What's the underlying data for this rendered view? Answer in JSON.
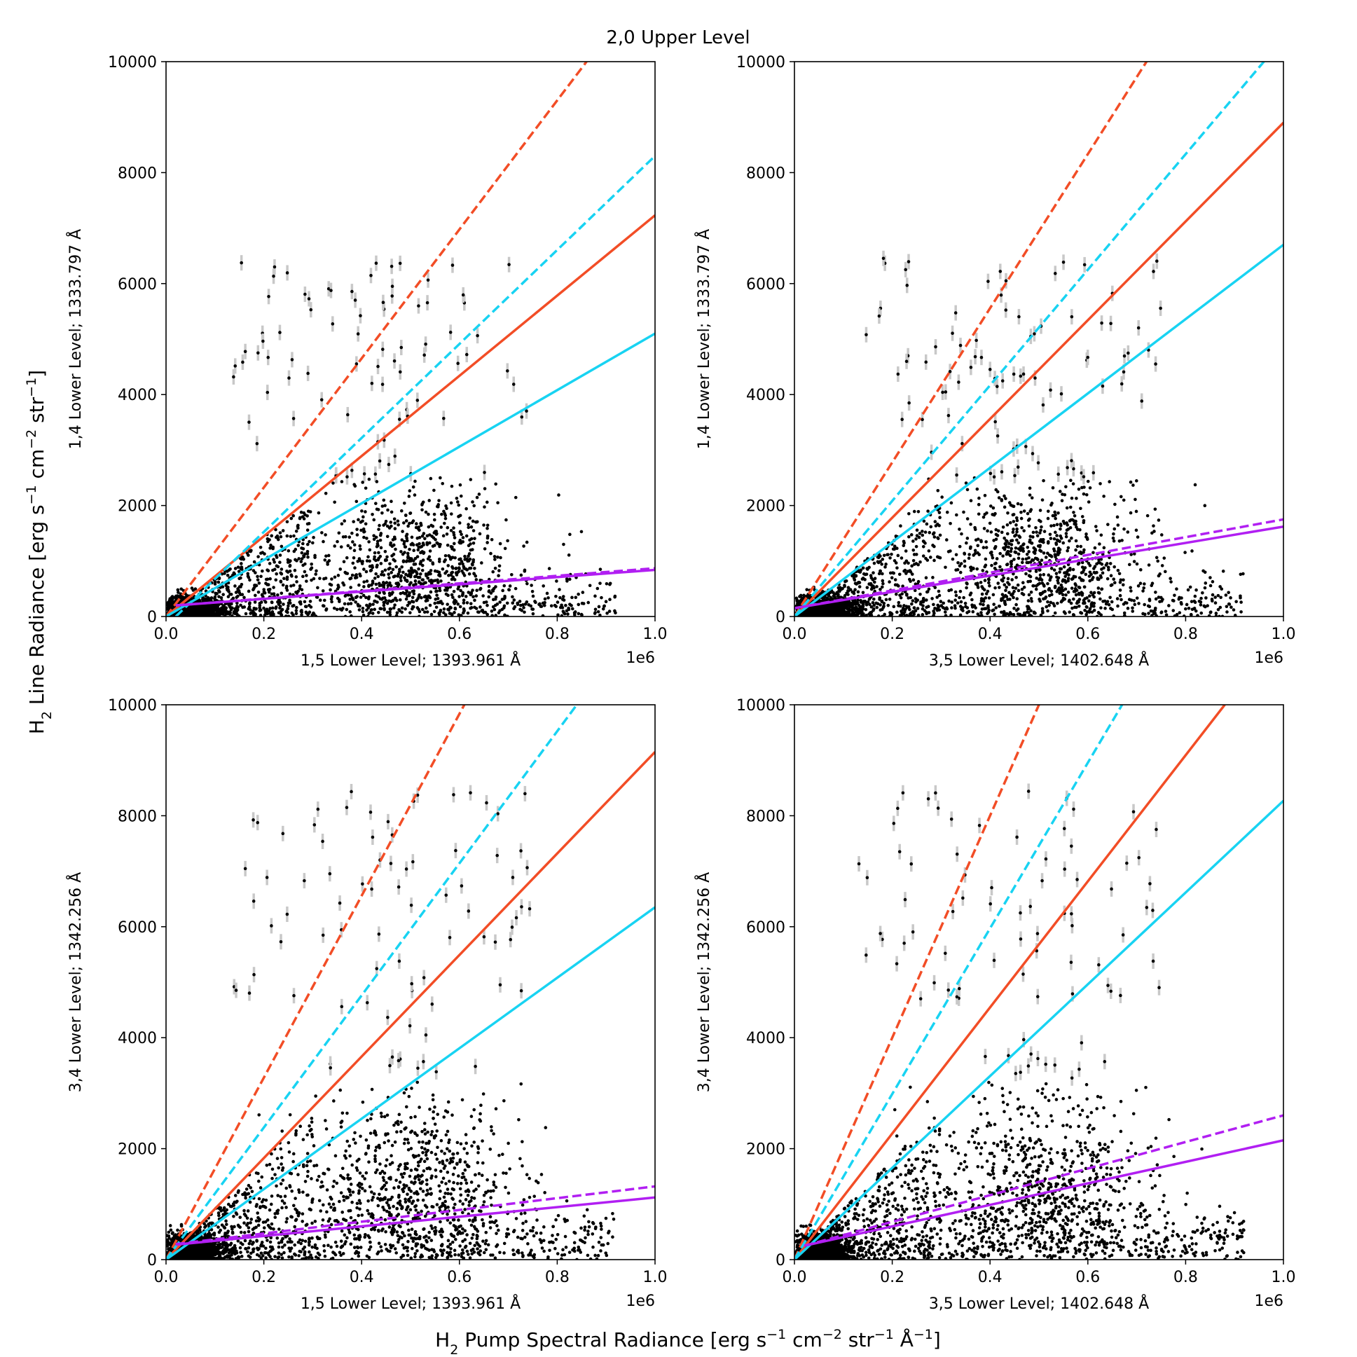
{
  "figure": {
    "suptitle": "2,0 Upper Level",
    "supylabel": {
      "prefix": "H",
      "sub": "2",
      "text": " Line Radiance [erg s",
      "sup1": "−1",
      "mid1": " cm",
      "sup2": "−2",
      "mid2": " str",
      "sup3": "−1",
      "end": "]"
    },
    "supxlabel": {
      "prefix": "H",
      "sub": "2",
      "text": " Pump Spectral Radiance [erg s",
      "sup1": "−1",
      "mid1": " cm",
      "sup2": "−2",
      "mid2": " str",
      "sup3": "−1",
      "mid3": " Å",
      "sup4": "−1",
      "end": "]"
    }
  },
  "chart_data": [
    {
      "type": "scatter",
      "panel": "top-left",
      "xlabel": "1,5 Lower Level; 1393.961 Å",
      "ylabel": "1,4 Lower Level; 1333.797 Å",
      "x_multiplier_label": "1e6",
      "xlim": [
        0,
        1.0
      ],
      "ylim": [
        0,
        10000
      ],
      "xticks": [
        "0.0",
        "0.2",
        "0.4",
        "0.6",
        "0.8",
        "1.0"
      ],
      "yticks": [
        "0",
        "2000",
        "4000",
        "6000",
        "8000",
        "10000"
      ],
      "scatter_summary": "~3000 points with grey error bars; dense cluster near origin (0–0.25, 0–1500), broad cloud over x 0.3–0.9, y 0–4500, high points near 5000–6300 at x 0.13–0.45",
      "lines": [
        {
          "name": "orange-dashed",
          "color": "#f24d26",
          "style": "dashed",
          "x": [
            0.0,
            0.86
          ],
          "y": [
            0,
            10000
          ]
        },
        {
          "name": "orange-solid",
          "color": "#f24d26",
          "style": "solid",
          "x": [
            0.0,
            1.0
          ],
          "y": [
            0,
            7230
          ]
        },
        {
          "name": "cyan-dashed",
          "color": "#18d3f2",
          "style": "dashed",
          "x": [
            0.02,
            1.0
          ],
          "y": [
            0,
            8300
          ]
        },
        {
          "name": "cyan-solid",
          "color": "#18d3f2",
          "style": "solid",
          "x": [
            0.0,
            1.0
          ],
          "y": [
            0,
            5100
          ]
        },
        {
          "name": "purple-dashed",
          "color": "#b11ff2",
          "style": "dashed",
          "x": [
            0.02,
            1.0
          ],
          "y": [
            200,
            870
          ]
        },
        {
          "name": "purple-solid",
          "color": "#b11ff2",
          "style": "solid",
          "x": [
            0.02,
            1.0
          ],
          "y": [
            200,
            840
          ]
        }
      ]
    },
    {
      "type": "scatter",
      "panel": "top-right",
      "xlabel": "3,5 Lower Level; 1402.648 Å",
      "ylabel": "1,4 Lower Level; 1333.797 Å",
      "x_multiplier_label": "1e6",
      "xlim": [
        0,
        1.0
      ],
      "ylim": [
        0,
        10000
      ],
      "xticks": [
        "0.0",
        "0.2",
        "0.4",
        "0.6",
        "0.8",
        "1.0"
      ],
      "yticks": [
        "0",
        "2000",
        "4000",
        "6000",
        "8000",
        "10000"
      ],
      "scatter_summary": "~3000 points with grey error bars; dense cluster near origin, broad cloud over x 0.3–0.8, y 0–5500",
      "lines": [
        {
          "name": "orange-dashed",
          "color": "#f24d26",
          "style": "dashed",
          "x": [
            0.0,
            0.72
          ],
          "y": [
            0,
            10000
          ]
        },
        {
          "name": "orange-solid",
          "color": "#f24d26",
          "style": "solid",
          "x": [
            0.0,
            1.0
          ],
          "y": [
            0,
            8900
          ]
        },
        {
          "name": "cyan-dashed",
          "color": "#18d3f2",
          "style": "dashed",
          "x": [
            0.0,
            0.96
          ],
          "y": [
            0,
            10000
          ]
        },
        {
          "name": "cyan-solid",
          "color": "#18d3f2",
          "style": "solid",
          "x": [
            0.0,
            1.0
          ],
          "y": [
            0,
            6700
          ]
        },
        {
          "name": "purple-dashed",
          "color": "#b11ff2",
          "style": "dashed",
          "x": [
            0.0,
            1.0
          ],
          "y": [
            150,
            1750
          ]
        },
        {
          "name": "purple-solid",
          "color": "#b11ff2",
          "style": "solid",
          "x": [
            0.0,
            1.0
          ],
          "y": [
            150,
            1620
          ]
        }
      ]
    },
    {
      "type": "scatter",
      "panel": "bottom-left",
      "xlabel": "1,5 Lower Level; 1393.961 Å",
      "ylabel": "3,4 Lower Level; 1342.256 Å",
      "x_multiplier_label": "1e6",
      "xlim": [
        0,
        1.0
      ],
      "ylim": [
        0,
        10000
      ],
      "xticks": [
        "0.0",
        "0.2",
        "0.4",
        "0.6",
        "0.8",
        "1.0"
      ],
      "yticks": [
        "0",
        "2000",
        "4000",
        "6000",
        "8000",
        "10000"
      ],
      "scatter_summary": "~3000 points; dense cluster near origin, broad cloud over x 0.3–0.9, y 0–7000, high points near 7500–8000",
      "lines": [
        {
          "name": "orange-dashed",
          "color": "#f24d26",
          "style": "dashed",
          "x": [
            0.0,
            0.61
          ],
          "y": [
            0,
            10000
          ]
        },
        {
          "name": "orange-solid",
          "color": "#f24d26",
          "style": "solid",
          "x": [
            0.0,
            1.0
          ],
          "y": [
            0,
            9150
          ]
        },
        {
          "name": "cyan-dashed",
          "color": "#18d3f2",
          "style": "dashed",
          "x": [
            0.0,
            0.84
          ],
          "y": [
            0,
            10000
          ]
        },
        {
          "name": "cyan-solid",
          "color": "#18d3f2",
          "style": "solid",
          "x": [
            0.0,
            1.0
          ],
          "y": [
            0,
            6350
          ]
        },
        {
          "name": "purple-dashed",
          "color": "#b11ff2",
          "style": "dashed",
          "x": [
            0.02,
            1.0
          ],
          "y": [
            280,
            1320
          ]
        },
        {
          "name": "purple-solid",
          "color": "#b11ff2",
          "style": "solid",
          "x": [
            0.02,
            1.0
          ],
          "y": [
            270,
            1120
          ]
        }
      ]
    },
    {
      "type": "scatter",
      "panel": "bottom-right",
      "xlabel": "3,5 Lower Level; 1402.648 Å",
      "ylabel": "3,4 Lower Level; 1342.256 Å",
      "x_multiplier_label": "1e6",
      "xlim": [
        0,
        1.0
      ],
      "ylim": [
        0,
        10000
      ],
      "xticks": [
        "0.0",
        "0.2",
        "0.4",
        "0.6",
        "0.8",
        "1.0"
      ],
      "yticks": [
        "0",
        "2000",
        "4000",
        "6000",
        "8000",
        "10000"
      ],
      "scatter_summary": "~3000 points; dense cluster near origin, broad cloud over x 0.3–0.8, y 0–8000",
      "lines": [
        {
          "name": "orange-dashed",
          "color": "#f24d26",
          "style": "dashed",
          "x": [
            0.0,
            0.5
          ],
          "y": [
            0,
            10000
          ]
        },
        {
          "name": "orange-solid",
          "color": "#f24d26",
          "style": "solid",
          "x": [
            0.0,
            0.88
          ],
          "y": [
            0,
            10000
          ]
        },
        {
          "name": "cyan-dashed",
          "color": "#18d3f2",
          "style": "dashed",
          "x": [
            0.0,
            0.67
          ],
          "y": [
            0,
            10000
          ]
        },
        {
          "name": "cyan-solid",
          "color": "#18d3f2",
          "style": "solid",
          "x": [
            0.0,
            1.0
          ],
          "y": [
            0,
            8270
          ]
        },
        {
          "name": "purple-dashed",
          "color": "#b11ff2",
          "style": "dashed",
          "x": [
            0.02,
            1.0
          ],
          "y": [
            250,
            2600
          ]
        },
        {
          "name": "purple-solid",
          "color": "#b11ff2",
          "style": "solid",
          "x": [
            0.02,
            1.0
          ],
          "y": [
            250,
            2150
          ]
        }
      ]
    }
  ]
}
